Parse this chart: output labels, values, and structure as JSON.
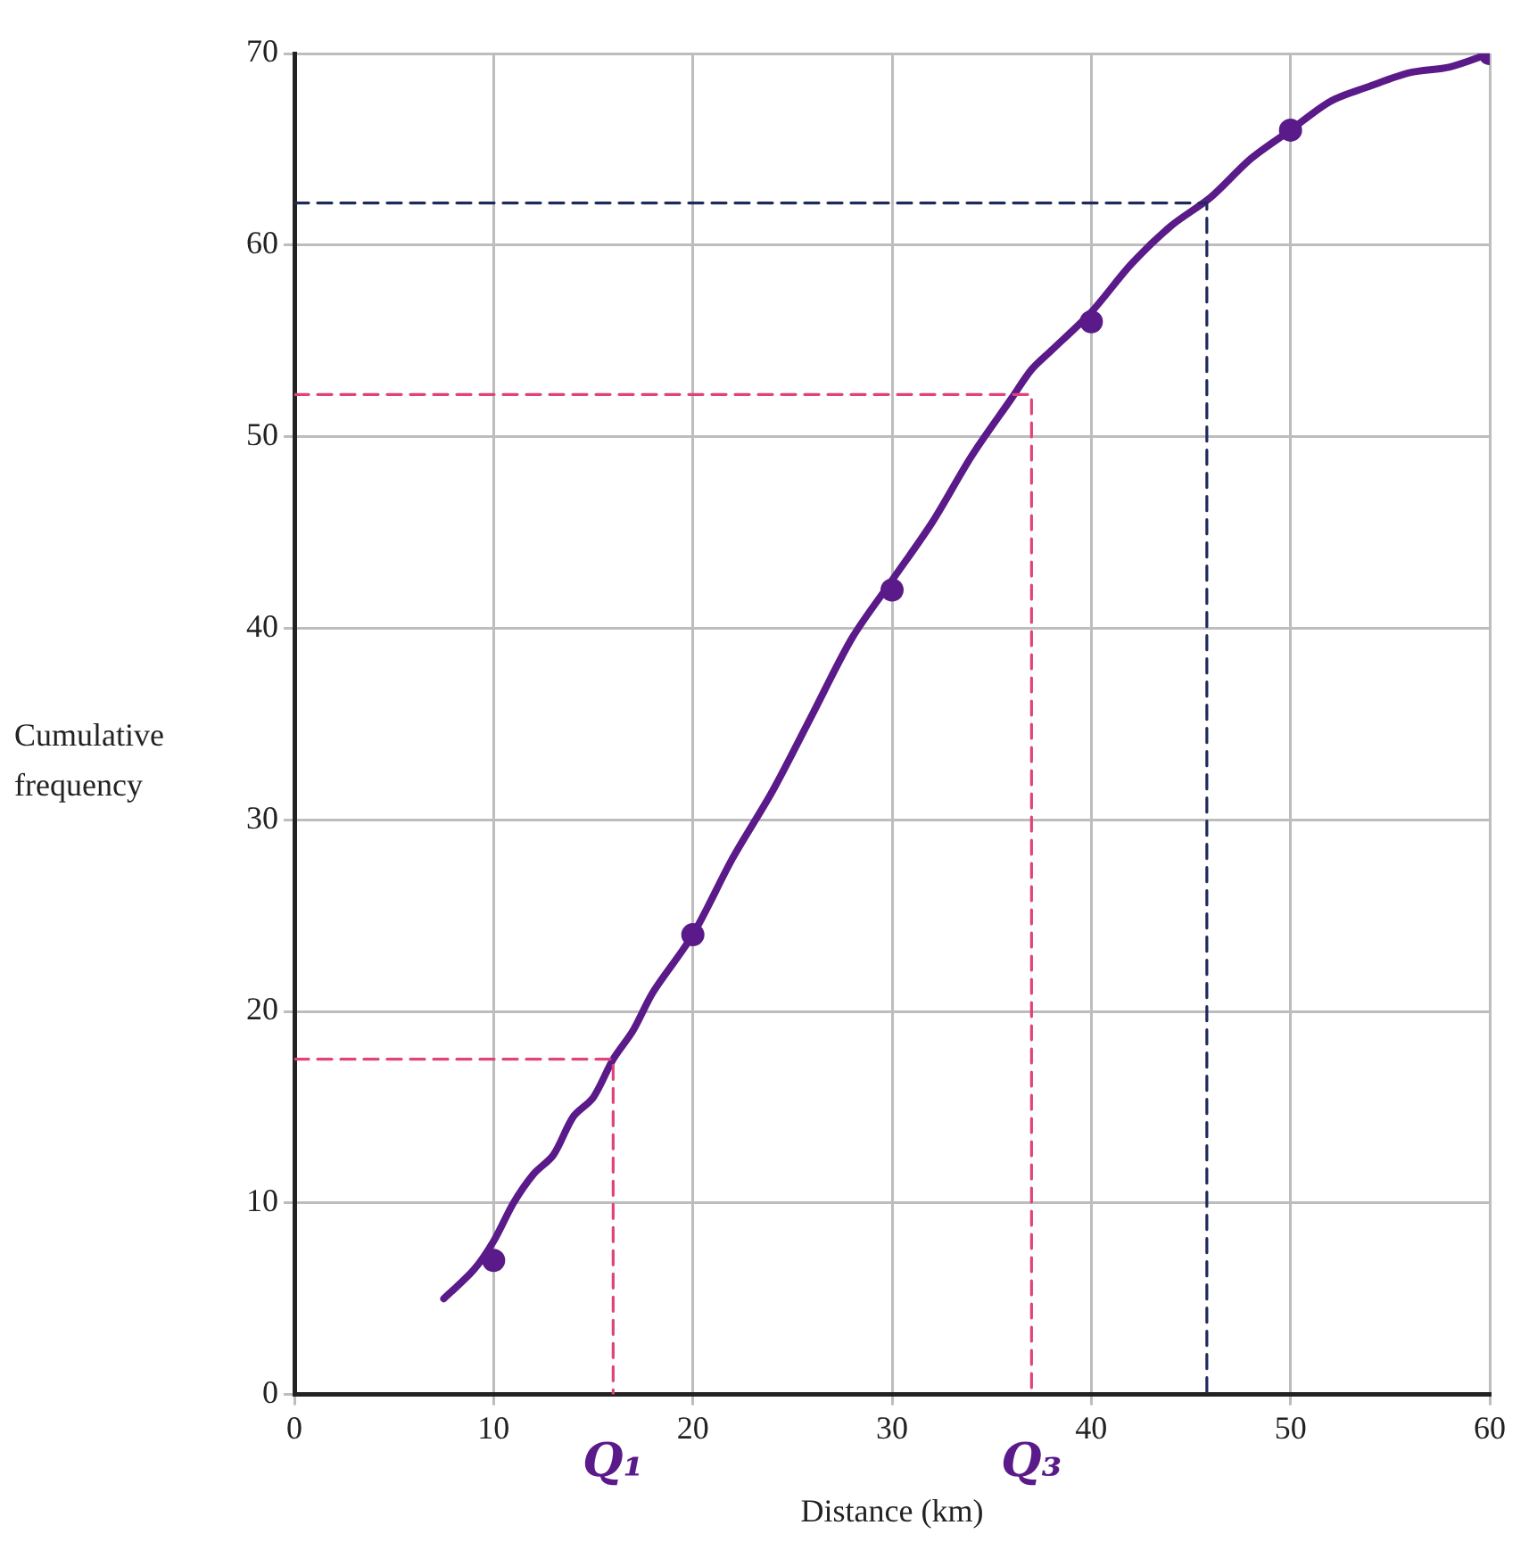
{
  "chart_data": {
    "type": "line",
    "xlabel": "Distance (km)",
    "ylabel": "Cumulative\nfrequency",
    "xlim": [
      0,
      60
    ],
    "ylim": [
      0,
      70
    ],
    "xticks": [
      0,
      10,
      20,
      30,
      40,
      50,
      60
    ],
    "yticks": [
      0,
      10,
      20,
      30,
      40,
      50,
      60,
      70
    ],
    "grid": true,
    "legend": false,
    "series": [
      {
        "color": "#5b1a8a",
        "marker": "none",
        "line_style": "solid",
        "x": [
          7.5,
          9,
          10,
          11,
          12,
          13,
          14,
          15,
          16,
          17,
          18,
          20,
          22,
          24,
          26,
          28,
          30,
          32,
          34,
          36,
          37,
          38,
          40,
          42,
          44,
          46,
          48,
          50,
          52,
          54,
          56,
          58,
          60
        ],
        "values": [
          5,
          6.5,
          8,
          10,
          11.5,
          12.5,
          14.5,
          15.5,
          17.5,
          19,
          21,
          24,
          28,
          31.5,
          35.5,
          39.5,
          42.5,
          45.5,
          49,
          52,
          53.5,
          54.5,
          56.5,
          59,
          61,
          62.5,
          64.5,
          66,
          67.5,
          68.3,
          69,
          69.3,
          70
        ]
      },
      {
        "type": "scatter",
        "color": "#5b1a8a",
        "marker": "circle",
        "x": [
          10,
          20,
          30,
          40,
          50,
          60
        ],
        "values": [
          7,
          24,
          42,
          56,
          66,
          70
        ]
      },
      {
        "type": "line",
        "color": "#e0427a",
        "marker": "none",
        "line_style": "dashed",
        "x": [
          0,
          16,
          16
        ],
        "values": [
          17.5,
          17.5,
          0
        ]
      },
      {
        "type": "line",
        "color": "#e0427a",
        "marker": "none",
        "line_style": "dashed",
        "x": [
          0,
          37,
          37
        ],
        "values": [
          52.2,
          52.2,
          0
        ]
      },
      {
        "type": "line",
        "color": "#1f2a5c",
        "marker": "none",
        "line_style": "dashed",
        "x": [
          0,
          45.8,
          45.8
        ],
        "values": [
          62.2,
          62.2,
          0
        ]
      }
    ],
    "annotations": [
      "Q₁",
      "Q₃"
    ]
  }
}
